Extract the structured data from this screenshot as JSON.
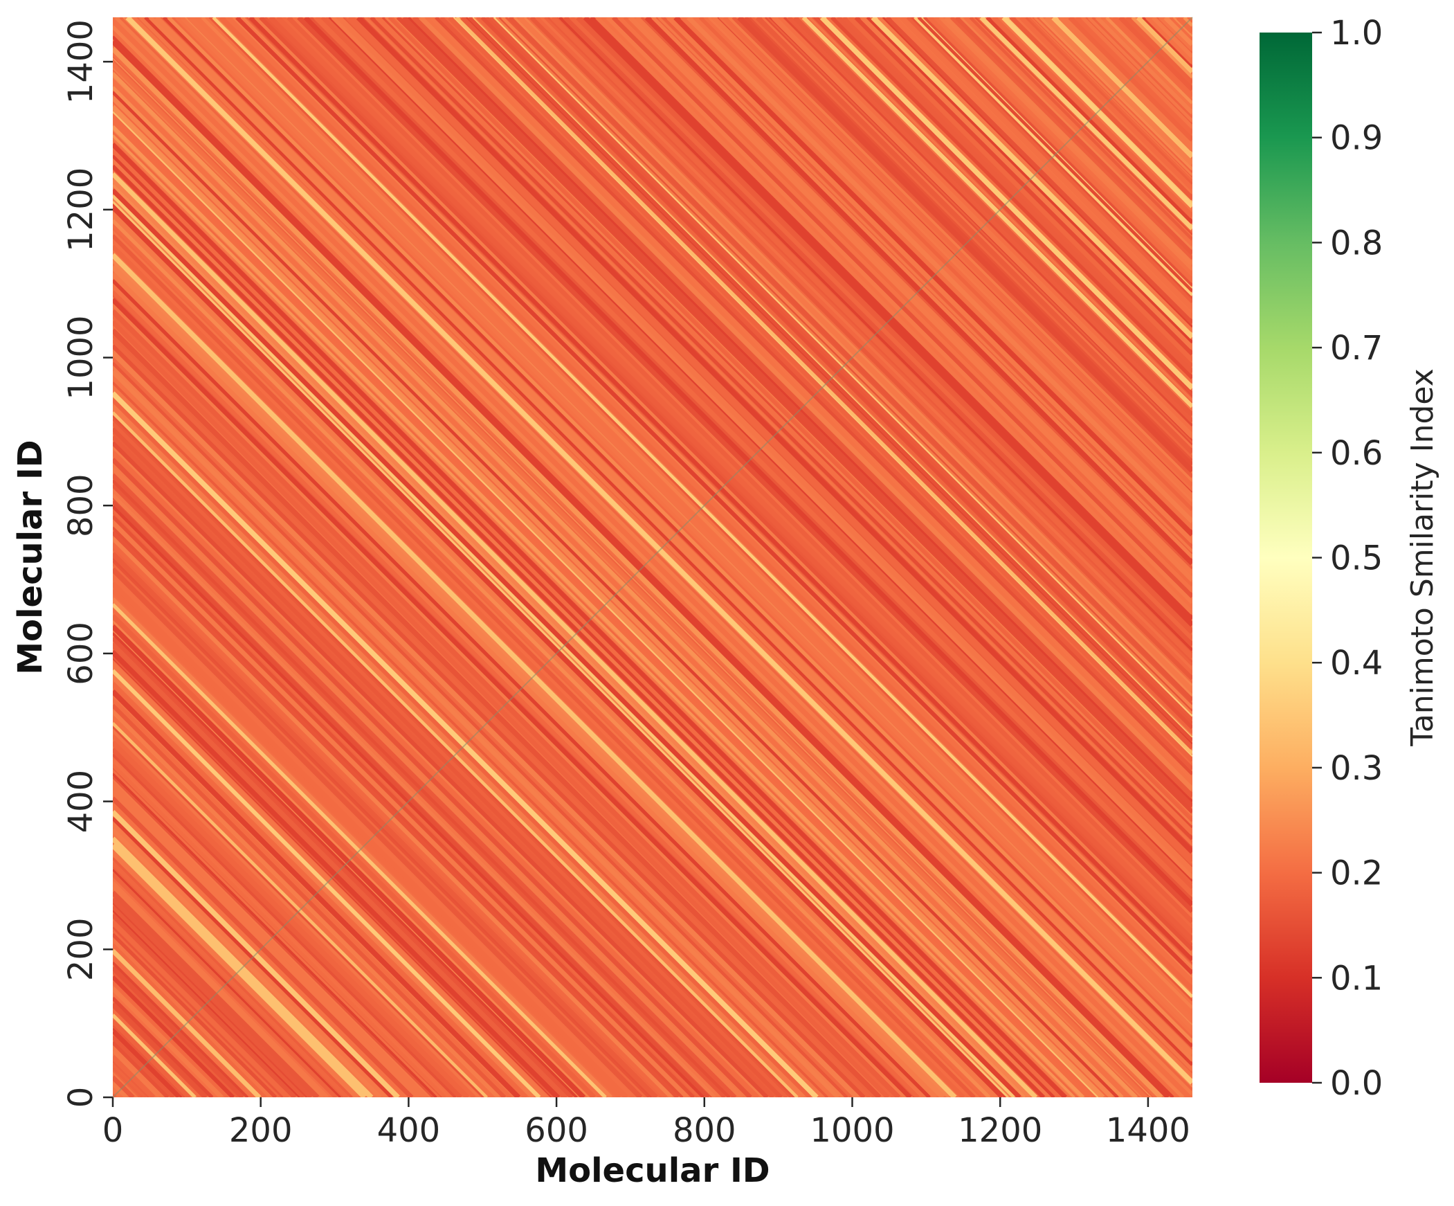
{
  "chart_data": {
    "type": "heatmap",
    "xlabel": "Molecular ID",
    "ylabel": "Molecular ID",
    "title": "",
    "x_range": [
      0,
      1460
    ],
    "y_range": [
      0,
      1460
    ],
    "x_ticks": [
      0,
      200,
      400,
      600,
      800,
      1000,
      1200,
      1400
    ],
    "y_ticks": [
      0,
      200,
      400,
      600,
      800,
      1000,
      1200,
      1400
    ],
    "colormap": "RdYlGn",
    "colorbar": {
      "label": "Tanimoto Smilarity Index",
      "range": [
        0.0,
        1.0
      ],
      "ticks": [
        "0.0",
        "0.1",
        "0.2",
        "0.3",
        "0.4",
        "0.5",
        "0.6",
        "0.7",
        "0.8",
        "0.9",
        "1.0"
      ],
      "colors": [
        "#a50026",
        "#d73027",
        "#f46d43",
        "#fdae61",
        "#fee08b",
        "#ffffbf",
        "#d9ef8b",
        "#a6d96a",
        "#66bd63",
        "#1a9850",
        "#006837"
      ]
    },
    "value_summary": {
      "typical_range": [
        0.12,
        0.3
      ],
      "dark_band_value": 0.13,
      "light_stripe_value": 0.32,
      "diagonal_value": 1.0,
      "pattern": "diagonal stripes running from upper-left to lower-right"
    },
    "grid": false,
    "legend": "colorbar-right"
  }
}
